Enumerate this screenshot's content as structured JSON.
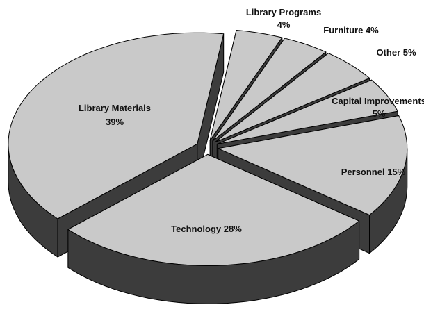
{
  "chart_data": {
    "type": "pie3d",
    "categories": [
      "Library Programs",
      "Furniture",
      "Other",
      "Capital Improvements",
      "Personnel",
      "Technology",
      "Library Materials"
    ],
    "values": [
      4,
      4,
      5,
      5,
      15,
      28,
      39
    ],
    "value_labels": [
      "4%",
      "4%",
      "5%",
      "5%",
      "15%",
      "28%",
      "39%"
    ],
    "colors": {
      "top": "#c9c9c9",
      "side": "#3c3c3c"
    }
  }
}
